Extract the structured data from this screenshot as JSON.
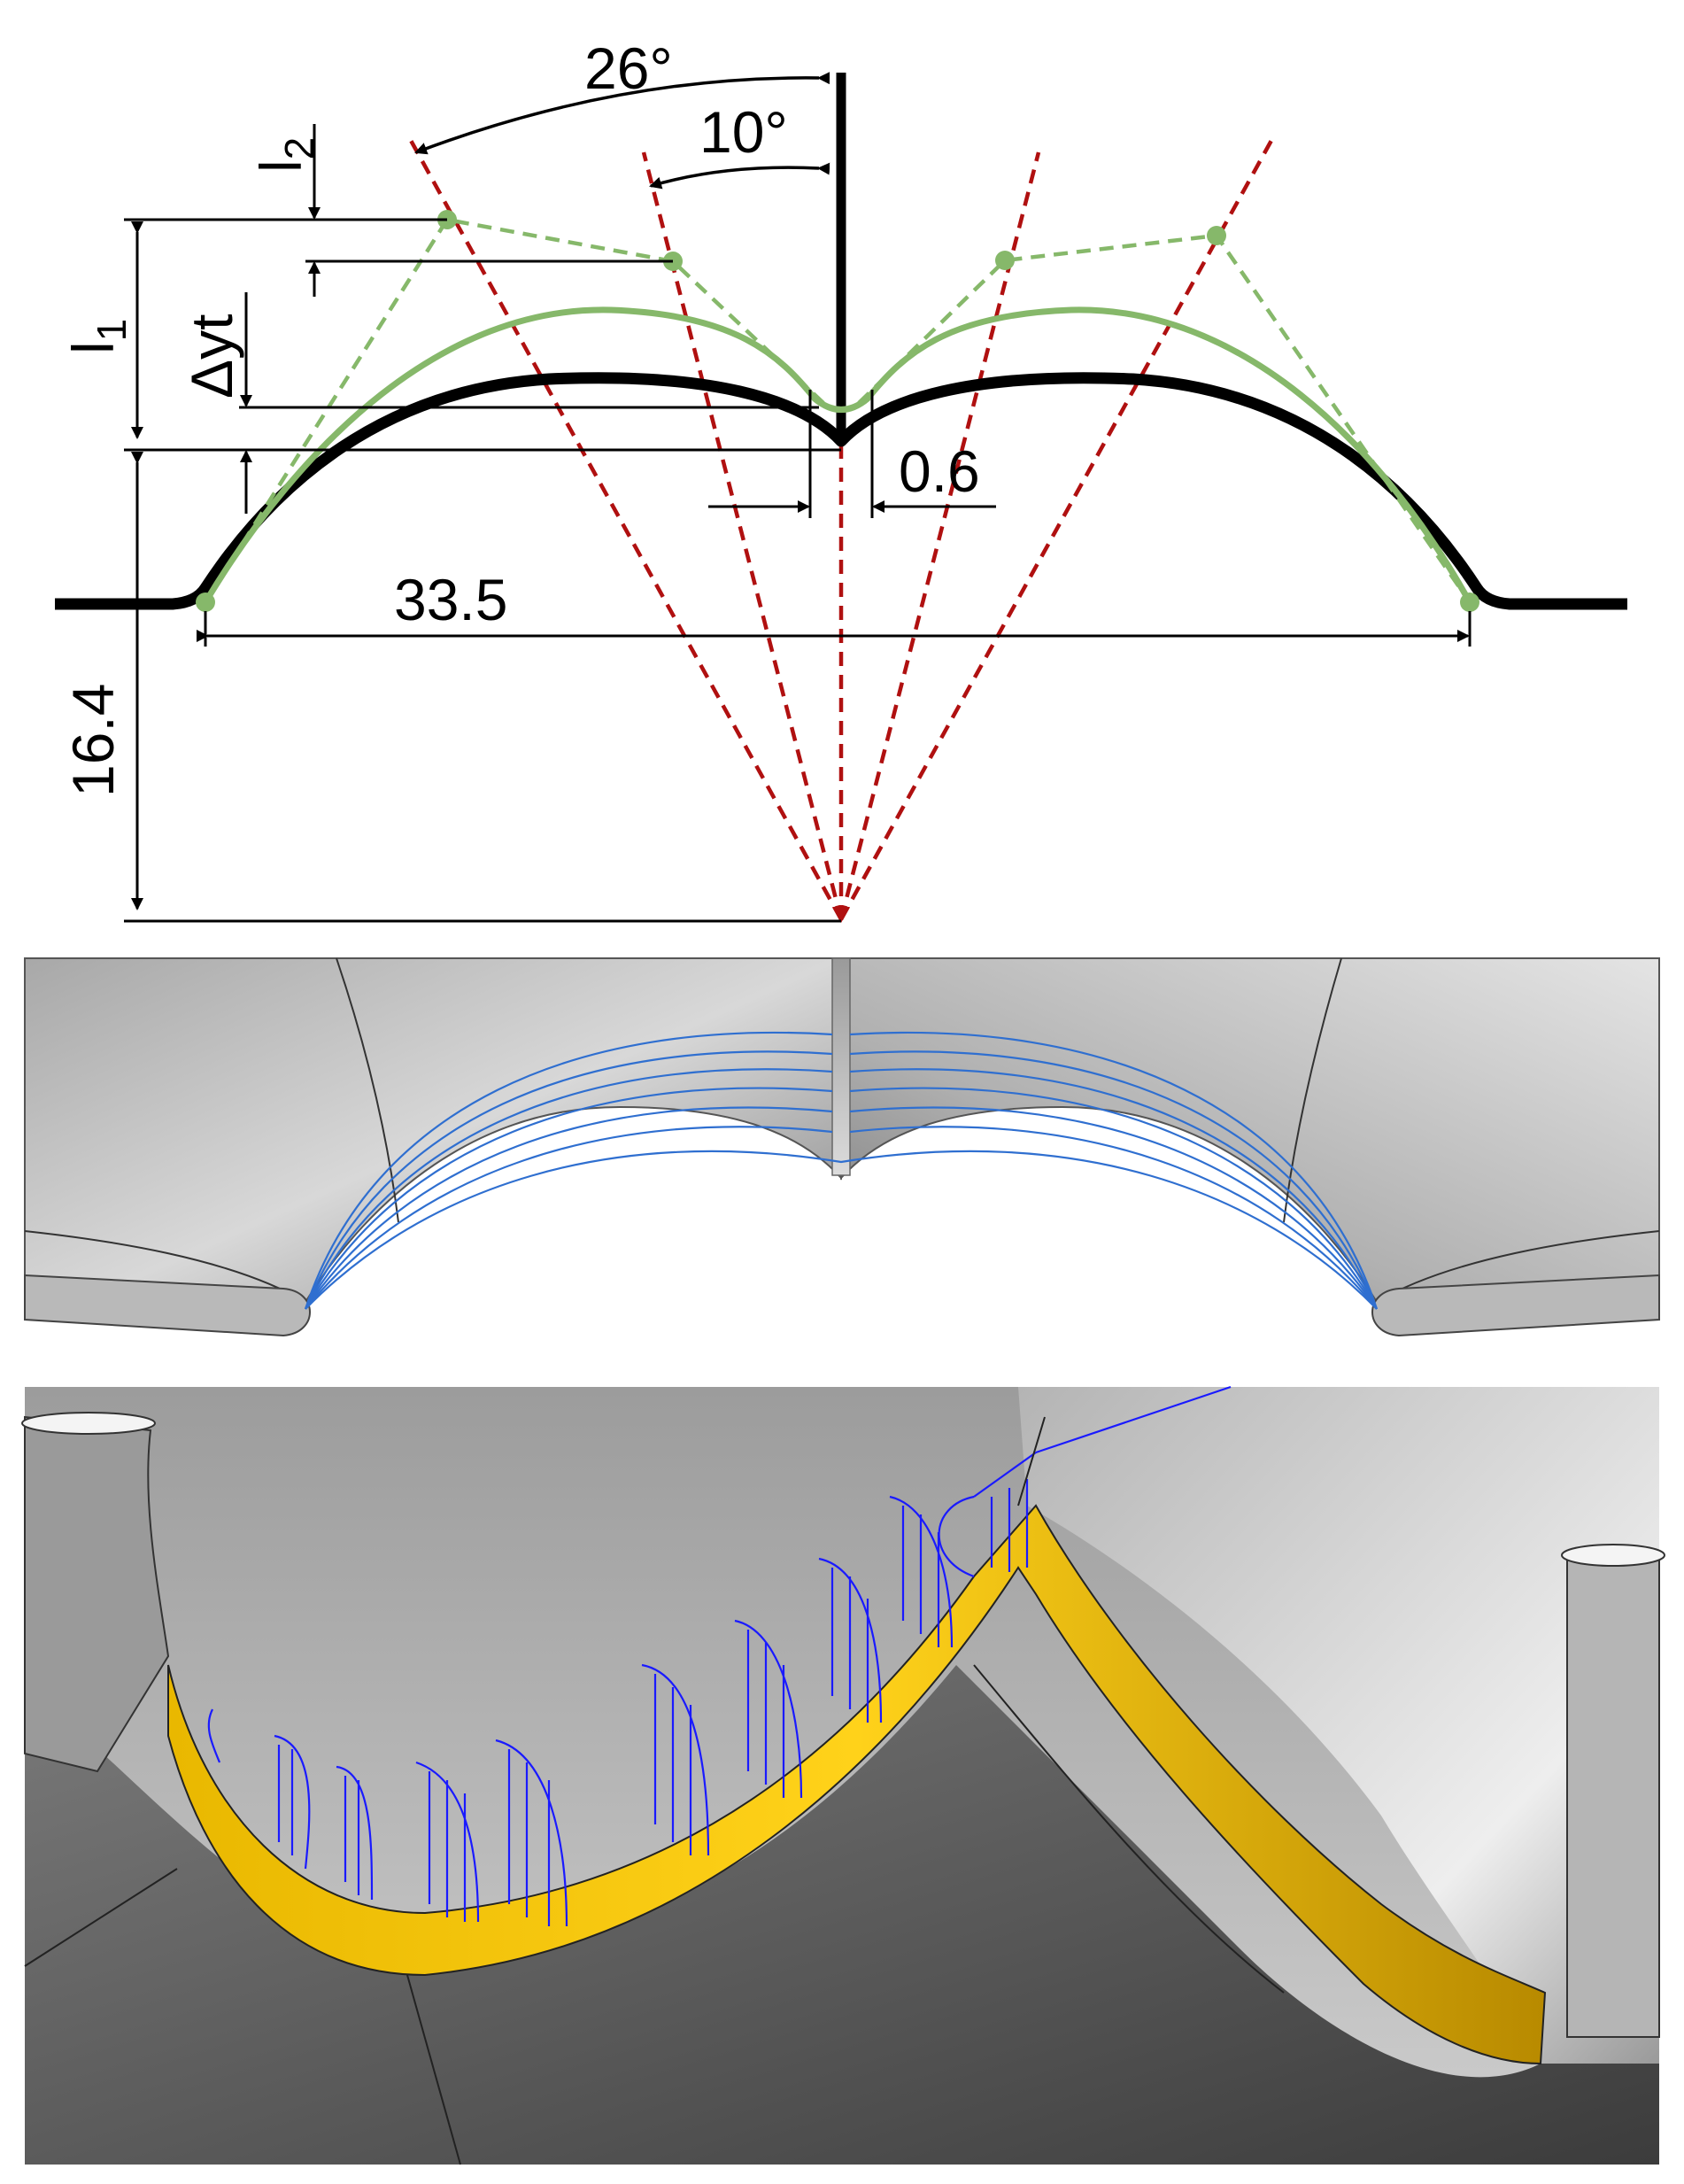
{
  "panels": {
    "schematic": {
      "labels": {
        "angle_outer": "26°",
        "angle_inner": "10°",
        "l1_letter": "l",
        "l1_subscript": "1",
        "l2_letter": "l",
        "l2_subscript": "2",
        "delta_yt": "Δyt",
        "gap": "0.6",
        "width": "33.5",
        "radius": "16.4"
      },
      "colors": {
        "profile": "#000000",
        "bezier": "#86b86a",
        "rays": "#b01010",
        "dimension": "#000000"
      }
    },
    "render_top": {
      "colors": {
        "surface_light": "#d8d8d8",
        "surface_dark": "#8a8a8a",
        "curves": "#2f6fd0"
      }
    },
    "render_bottom": {
      "colors": {
        "surface_light": "#bfbfbf",
        "surface_dark": "#4a4a4a",
        "fillet": "#f2c200",
        "profiles": "#1a1aff"
      }
    }
  }
}
